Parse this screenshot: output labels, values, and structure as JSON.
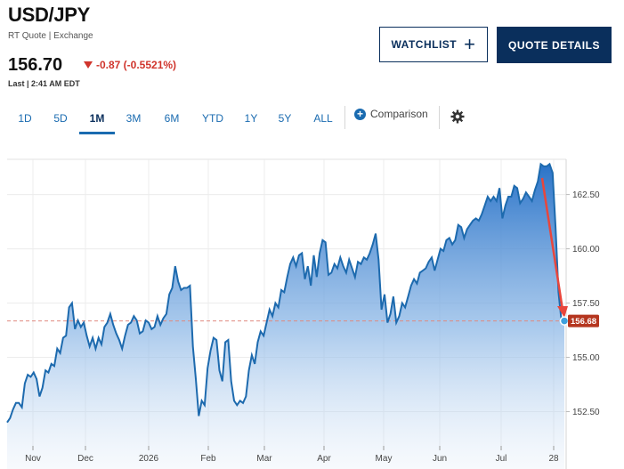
{
  "header": {
    "title": "USD/JPY",
    "subtitle": "RT Quote | Exchange",
    "price": "156.70",
    "change": "-0.87 (-0.5521%)",
    "last_update": "Last | 2:41 AM EDT"
  },
  "buttons": {
    "watchlist": "WATCHLIST",
    "quote_details": "QUOTE DETAILS"
  },
  "tabs": [
    {
      "label": "1D"
    },
    {
      "label": "5D"
    },
    {
      "label": "1M",
      "active": true
    },
    {
      "label": "3M"
    },
    {
      "label": "6M"
    },
    {
      "label": "YTD"
    },
    {
      "label": "1Y"
    },
    {
      "label": "5Y"
    },
    {
      "label": "ALL"
    }
  ],
  "comparison_label": "Comparison",
  "colors": {
    "accent": "#1a6bb0",
    "navy": "#0a2f5c",
    "down": "#d0342c",
    "price_tag": "#b5361f"
  },
  "chart_data": {
    "type": "area",
    "x_labels": [
      "Nov",
      "Dec",
      "2026",
      "Feb",
      "Mar",
      "Apr",
      "May",
      "Jun",
      "Jul",
      "28"
    ],
    "y_ticks": [
      152.5,
      155.0,
      157.5,
      160.0,
      162.5
    ],
    "ylim": [
      150.8,
      164.0
    ],
    "grid": true,
    "current_value": 156.68,
    "current_label": "156.68",
    "reference_line": 156.68,
    "series": [
      {
        "values": [
          152.0,
          152.2,
          152.6,
          152.9,
          152.9,
          152.7,
          153.8,
          154.2,
          154.1,
          154.3,
          154.0,
          153.2,
          153.6,
          154.4,
          154.3,
          154.7,
          154.6,
          155.4,
          155.2,
          155.9,
          156.0,
          157.3,
          157.5,
          156.3,
          156.7,
          156.4,
          156.6,
          156.0,
          155.5,
          155.9,
          155.4,
          155.9,
          155.6,
          156.4,
          156.6,
          157.0,
          156.5,
          156.1,
          155.8,
          155.4,
          156.0,
          156.5,
          156.6,
          156.9,
          156.7,
          156.1,
          156.2,
          156.7,
          156.6,
          156.3,
          156.4,
          156.9,
          156.5,
          156.8,
          157.0,
          157.9,
          158.2,
          159.2,
          158.5,
          158.1,
          158.2,
          158.2,
          158.3,
          155.5,
          154.0,
          152.3,
          153.0,
          152.8,
          154.5,
          155.3,
          155.9,
          155.8,
          154.4,
          153.9,
          155.7,
          155.8,
          153.9,
          153.0,
          152.8,
          153.0,
          152.9,
          153.2,
          154.4,
          155.1,
          154.7,
          155.7,
          156.2,
          156.0,
          156.6,
          157.2,
          156.9,
          157.5,
          157.3,
          158.1,
          158.0,
          158.7,
          159.3,
          159.6,
          159.2,
          159.7,
          159.8,
          158.6,
          159.2,
          158.3,
          159.7,
          158.7,
          159.8,
          160.4,
          160.3,
          158.8,
          158.9,
          159.3,
          159.1,
          159.6,
          159.2,
          158.9,
          159.5,
          159.1,
          158.7,
          159.4,
          159.3,
          159.6,
          159.5,
          159.8,
          160.2,
          160.7,
          159.5,
          157.2,
          157.9,
          156.6,
          157.0,
          157.8,
          156.6,
          156.9,
          157.5,
          157.3,
          157.8,
          158.3,
          158.6,
          158.4,
          158.9,
          159.0,
          159.1,
          159.4,
          159.6,
          159.0,
          159.5,
          160.0,
          159.9,
          160.4,
          160.5,
          160.2,
          160.4,
          161.1,
          161.0,
          160.5,
          160.9,
          161.1,
          161.3,
          161.4,
          161.3,
          161.6,
          162.0,
          162.4,
          162.2,
          162.4,
          162.2,
          162.8,
          161.4,
          162.0,
          162.4,
          162.4,
          162.9,
          162.8,
          162.1,
          162.3,
          162.6,
          162.4,
          162.2,
          162.7,
          163.1,
          163.9,
          163.8,
          163.8,
          163.9,
          163.5,
          161.0,
          158.0,
          156.7,
          156.68
        ]
      }
    ]
  }
}
